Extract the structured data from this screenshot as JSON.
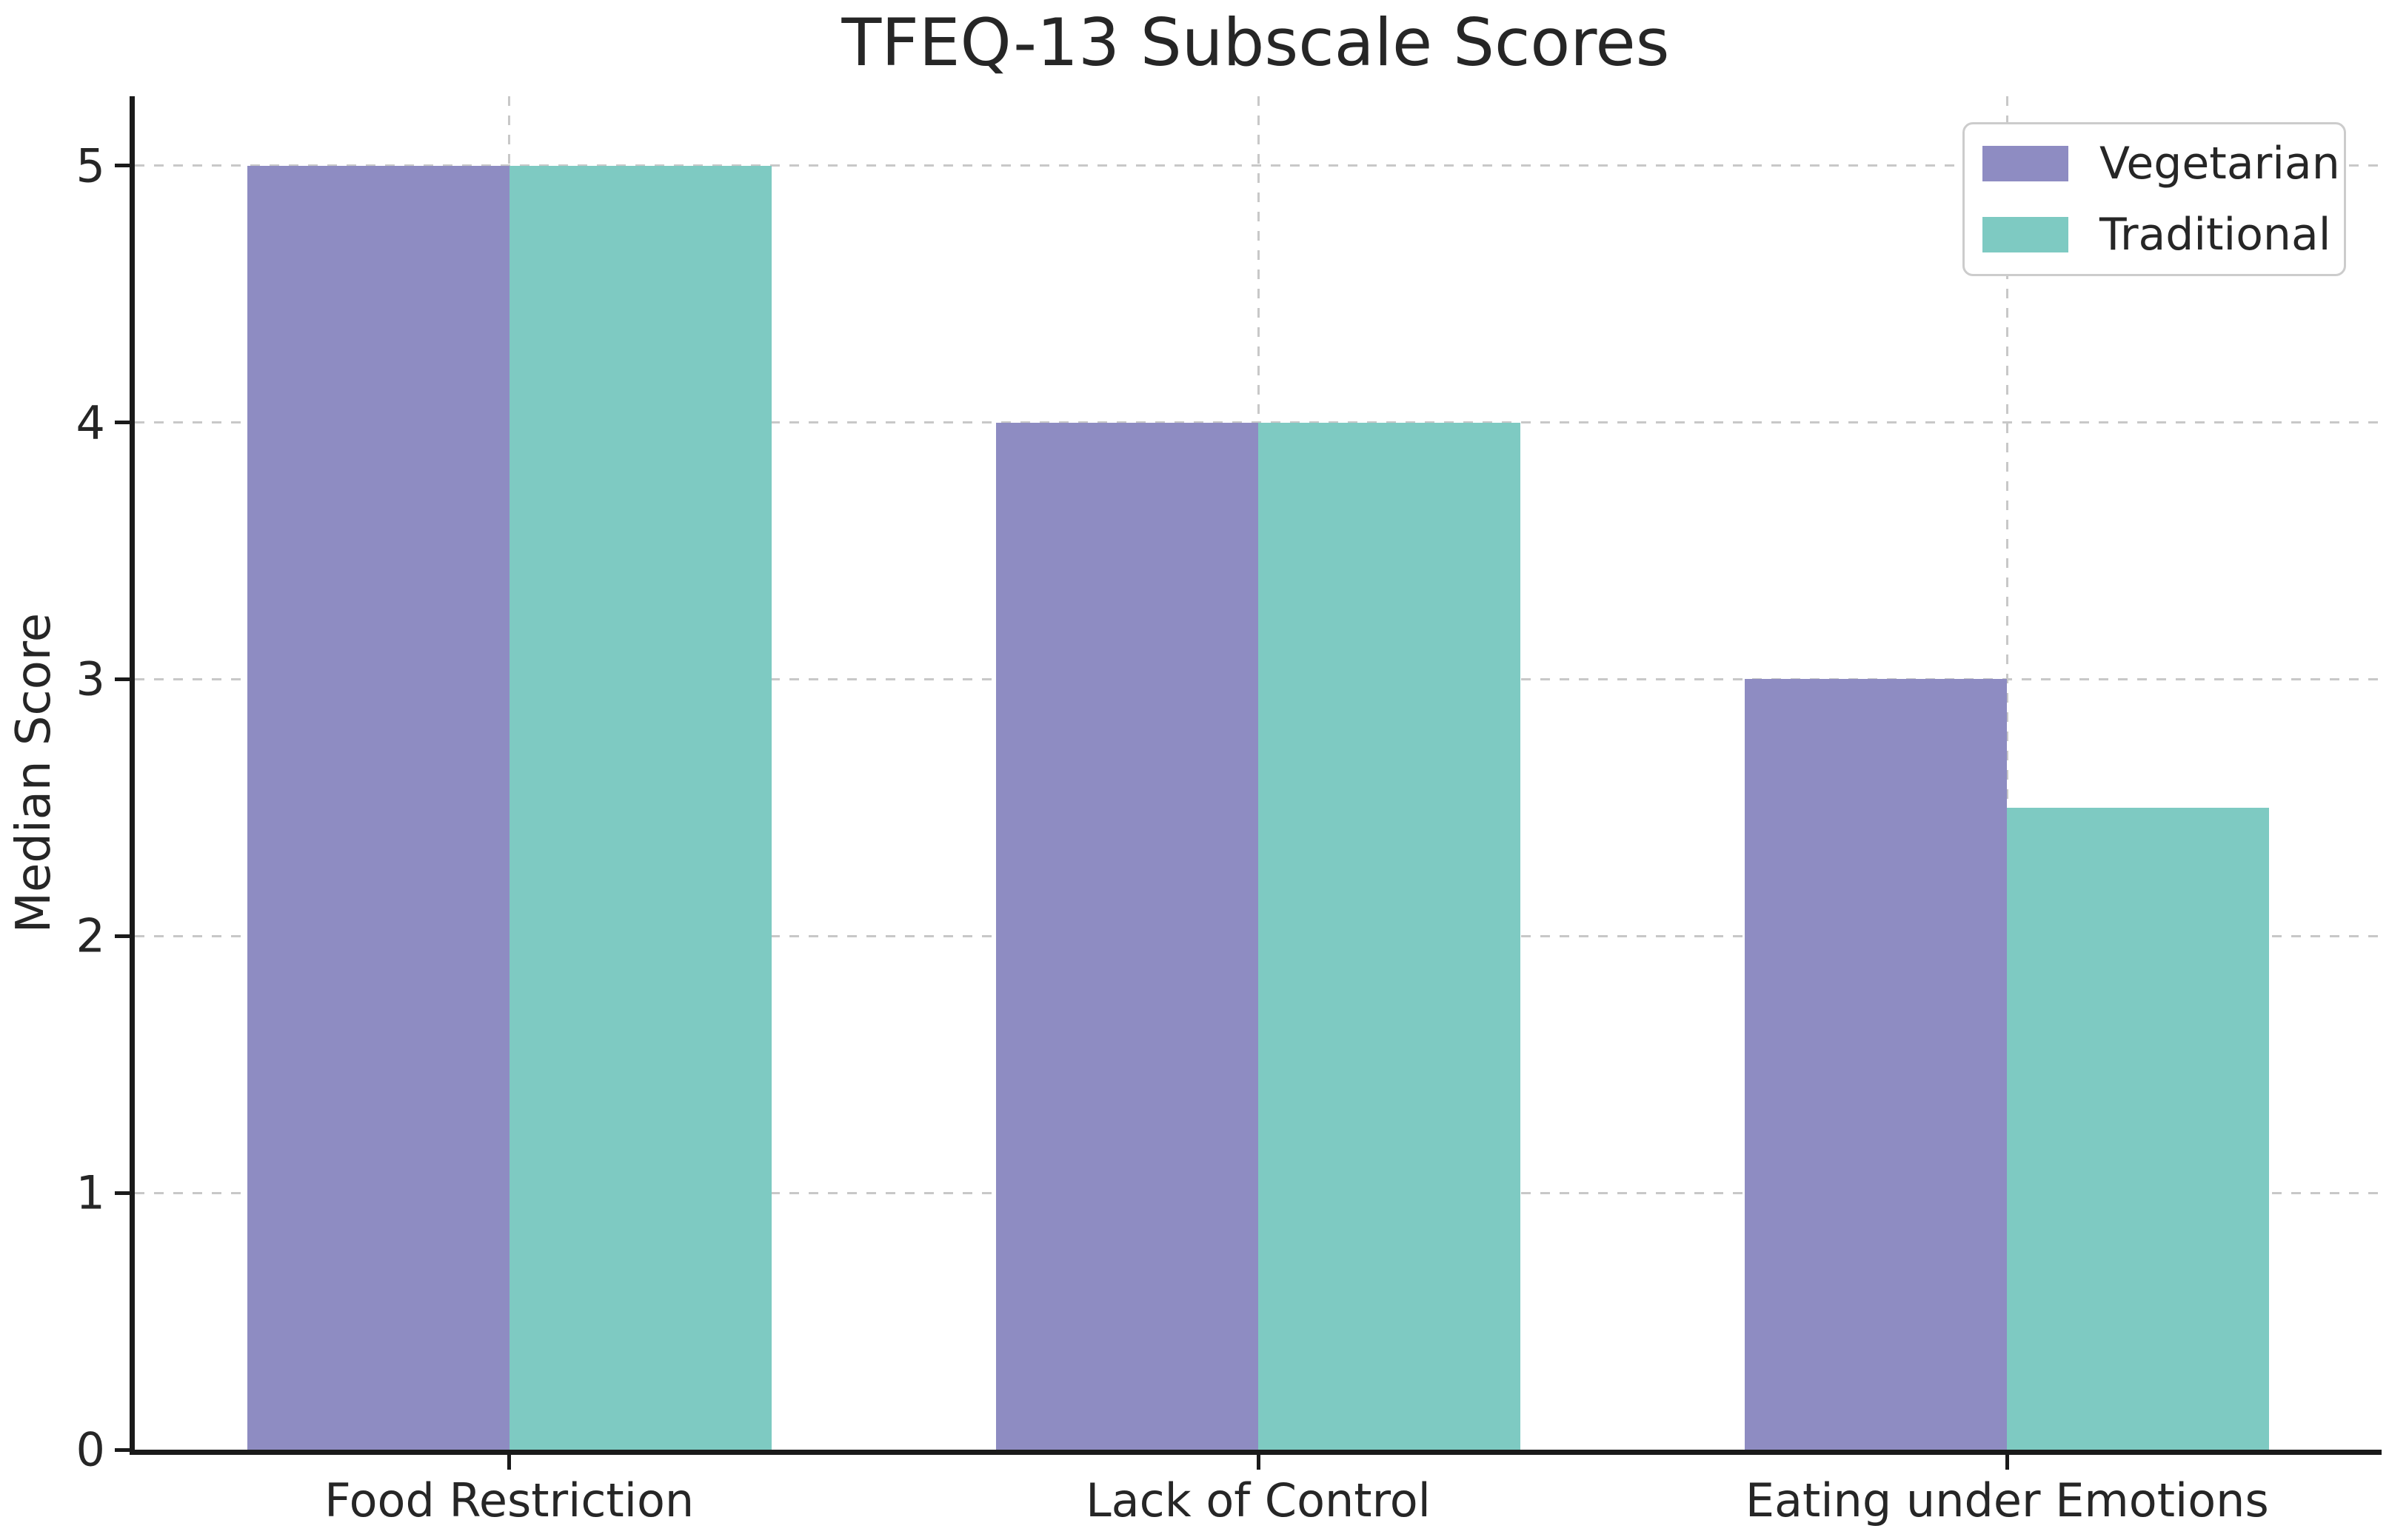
{
  "chart_data": {
    "type": "bar",
    "title": "TFEQ-13 Subscale Scores",
    "xlabel": "",
    "ylabel": "Median Score",
    "categories": [
      "Food Restriction",
      "Lack of Control",
      "Eating under Emotions"
    ],
    "series": [
      {
        "name": "Vegetarian",
        "color": "#8e8cc2",
        "values": [
          5,
          4,
          3
        ]
      },
      {
        "name": "Traditional",
        "color": "#7ecac2",
        "values": [
          5,
          4,
          2.5
        ]
      }
    ],
    "ylim": [
      0,
      5.27
    ],
    "yticks": [
      0,
      1,
      2,
      3,
      4,
      5
    ],
    "ytick_labels": [
      "0",
      "1",
      "2",
      "3",
      "4",
      "5"
    ],
    "grid": true,
    "grid_style": "dashed",
    "legend_position": "upper right",
    "bar_group_width_fraction": 0.7
  },
  "colors": {
    "text": "#262626",
    "spine": "#1a1a1a",
    "grid": "#c8c8c8",
    "background": "#ffffff"
  }
}
